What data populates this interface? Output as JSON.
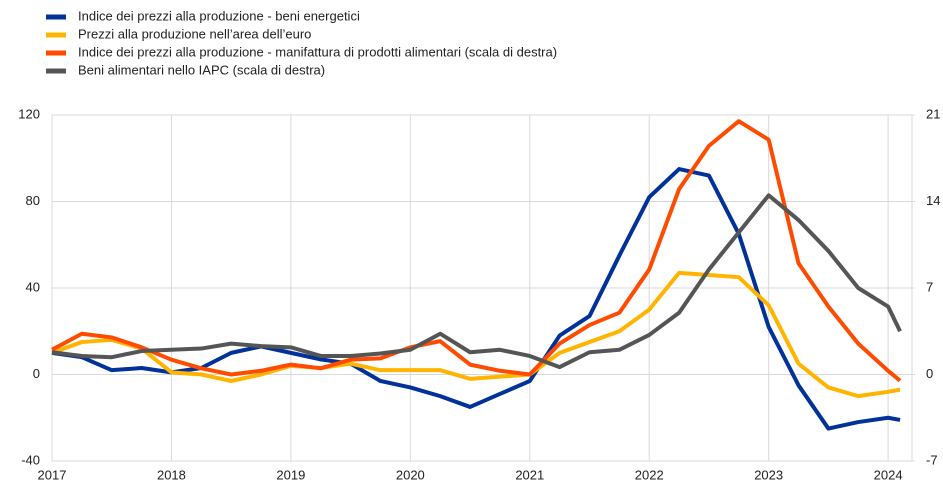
{
  "chart_data": {
    "type": "line",
    "x": [
      2017,
      2017.25,
      2017.5,
      2017.75,
      2018,
      2018.25,
      2018.5,
      2018.75,
      2019,
      2019.25,
      2019.5,
      2019.75,
      2020,
      2020.25,
      2020.5,
      2020.75,
      2021,
      2021.25,
      2021.5,
      2021.75,
      2022,
      2022.25,
      2022.5,
      2022.75,
      2023,
      2023.25,
      2023.5,
      2023.75,
      2024,
      2024.1
    ],
    "xlim": [
      2017,
      2024.2
    ],
    "xticks": [
      2017,
      2018,
      2019,
      2020,
      2021,
      2022,
      2023,
      2024
    ],
    "ylim": [
      -40,
      120
    ],
    "yticks": [
      -40,
      0,
      40,
      80,
      120
    ],
    "y2lim": [
      -7,
      21
    ],
    "y2ticks": [
      -7,
      0,
      7,
      14,
      21
    ],
    "grid": true,
    "legend": "top-left",
    "series": [
      {
        "name": "Indice dei prezzi alla produzione - beni energetici",
        "color": "#003299",
        "values": [
          10,
          8,
          2,
          3,
          1,
          3,
          10,
          13,
          10,
          7,
          5,
          -3,
          -6,
          -10,
          -15,
          -9,
          -3,
          18,
          27,
          55,
          82,
          95,
          92,
          65,
          22,
          -5,
          -25,
          -22,
          -20,
          -21
        ]
      },
      {
        "name": "Prezzi alla produzione nell’area dell’euro",
        "color": "#ffb400",
        "values": [
          10,
          15,
          16,
          12,
          1,
          0,
          -3,
          0,
          4,
          3,
          5,
          2,
          2,
          2,
          -2,
          -1,
          0,
          10,
          15,
          20,
          30,
          47,
          46,
          45,
          32,
          5,
          -6,
          -10,
          -8,
          -7
        ]
      },
      {
        "name": "Indice dei prezzi alla produzione - manifattura di prodotti alimentari (scala di destra)",
        "color": "#ff4b00",
        "axis": "y2",
        "values": [
          2,
          3.3,
          3,
          2.2,
          1.2,
          0.5,
          0,
          0.3,
          0.8,
          0.5,
          1.2,
          1.3,
          2.2,
          2.7,
          0.8,
          0.3,
          0,
          2.5,
          4,
          5,
          8.5,
          15,
          18.5,
          20.5,
          19,
          9,
          5.5,
          2.5,
          0.3,
          -0.5
        ]
      },
      {
        "name": "Beni alimentari nello IAPC (scala di destra)",
        "color": "#555555",
        "axis": "y2",
        "values": [
          1.8,
          1.5,
          1.4,
          1.9,
          2,
          2.1,
          2.5,
          2.3,
          2.2,
          1.5,
          1.5,
          1.7,
          2,
          3.3,
          1.8,
          2,
          1.5,
          0.6,
          1.8,
          2,
          3.2,
          5,
          8.5,
          11.5,
          14.5,
          12.5,
          10,
          7,
          5.5,
          3.5
        ]
      }
    ]
  }
}
